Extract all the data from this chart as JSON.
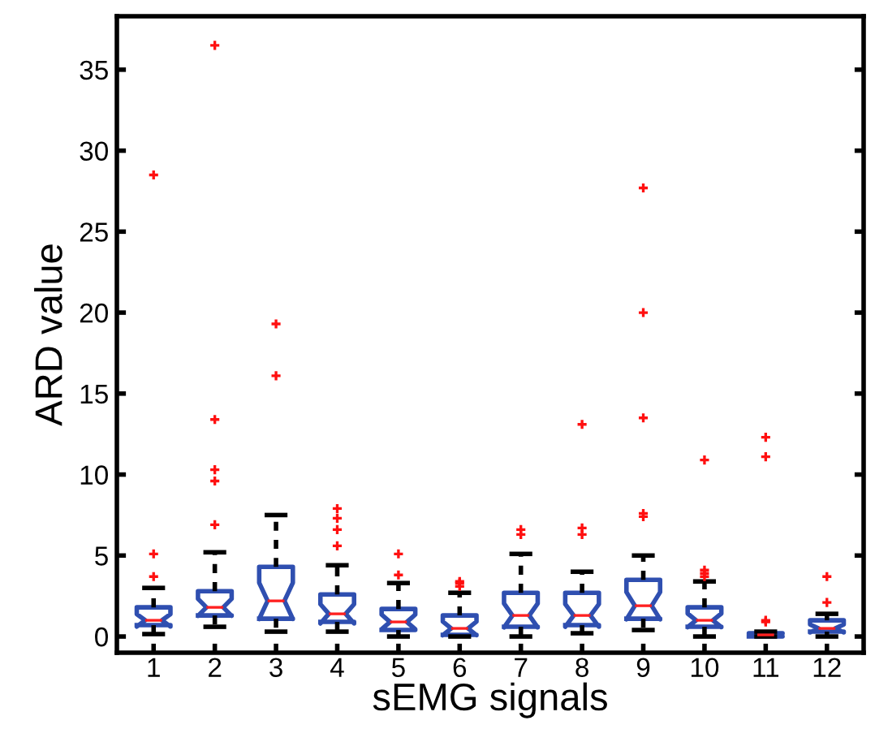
{
  "chart_data": {
    "type": "box",
    "xlabel": "sEMG signals",
    "ylabel": "ARD value",
    "categories": [
      "1",
      "2",
      "3",
      "4",
      "5",
      "6",
      "7",
      "8",
      "9",
      "10",
      "11",
      "12"
    ],
    "boxes": [
      {
        "low": 0.15,
        "q1": 0.7,
        "median": 1.0,
        "q3": 1.8,
        "high": 3.0,
        "outliers": [
          3.7,
          5.1,
          28.5
        ]
      },
      {
        "low": 0.6,
        "q1": 1.3,
        "median": 1.8,
        "q3": 2.8,
        "high": 5.2,
        "outliers": [
          6.9,
          9.6,
          10.3,
          13.4,
          36.5
        ]
      },
      {
        "low": 0.3,
        "q1": 1.1,
        "median": 2.2,
        "q3": 4.3,
        "high": 7.5,
        "outliers": [
          16.1,
          19.3
        ]
      },
      {
        "low": 0.3,
        "q1": 0.9,
        "median": 1.4,
        "q3": 2.6,
        "high": 4.4,
        "outliers": [
          5.6,
          6.6,
          7.3,
          7.9
        ]
      },
      {
        "low": 0.0,
        "q1": 0.4,
        "median": 0.9,
        "q3": 1.7,
        "high": 3.3,
        "outliers": [
          3.8,
          5.1
        ]
      },
      {
        "low": 0.0,
        "q1": 0.1,
        "median": 0.5,
        "q3": 1.3,
        "high": 2.7,
        "outliers": [
          3.1,
          3.3,
          3.4
        ]
      },
      {
        "low": 0.0,
        "q1": 0.6,
        "median": 1.3,
        "q3": 2.7,
        "high": 5.1,
        "outliers": [
          6.3,
          6.6
        ]
      },
      {
        "low": 0.2,
        "q1": 0.7,
        "median": 1.3,
        "q3": 2.7,
        "high": 4.0,
        "outliers": [
          6.3,
          6.7,
          13.1
        ]
      },
      {
        "low": 0.4,
        "q1": 1.1,
        "median": 1.9,
        "q3": 3.5,
        "high": 5.0,
        "outliers": [
          7.4,
          7.6,
          13.5,
          20.0,
          27.7
        ]
      },
      {
        "low": 0.0,
        "q1": 0.6,
        "median": 1.0,
        "q3": 1.8,
        "high": 3.4,
        "outliers": [
          3.7,
          3.9,
          4.1,
          10.9
        ]
      },
      {
        "low": 0.0,
        "q1": 0.0,
        "median": 0.1,
        "q3": 0.2,
        "high": 0.3,
        "outliers": [
          0.9,
          1.0,
          11.1,
          12.3
        ]
      },
      {
        "low": 0.0,
        "q1": 0.3,
        "median": 0.5,
        "q3": 1.0,
        "high": 1.4,
        "outliers": [
          2.1,
          3.7
        ]
      }
    ],
    "color": "#2f4fb0",
    "ylim": [
      -1,
      38.3
    ],
    "yticks": [
      0,
      5,
      10,
      15,
      20,
      25,
      30,
      35
    ],
    "grid": false,
    "legend": false
  }
}
